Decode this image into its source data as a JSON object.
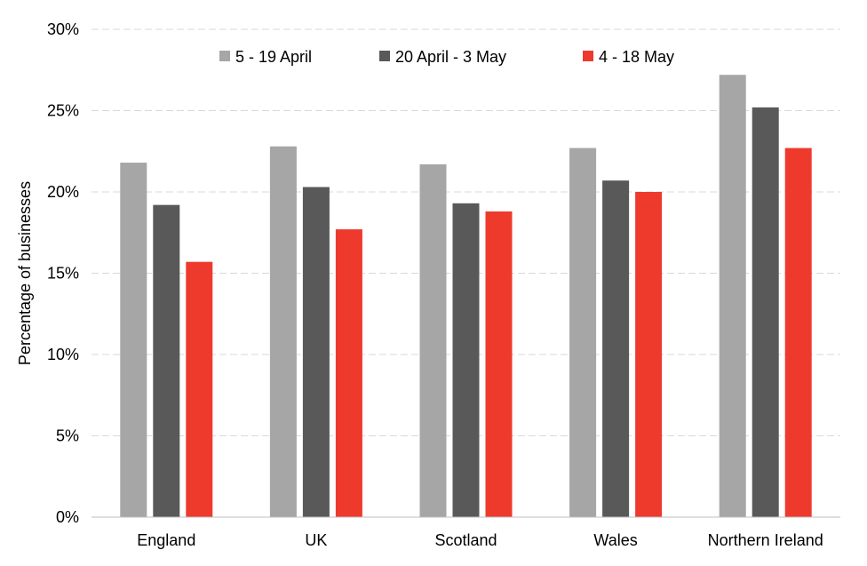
{
  "chart_data": {
    "type": "bar",
    "title": "",
    "xlabel": "",
    "ylabel": "Percentage of businesses",
    "categories": [
      "England",
      "UK",
      "Scotland",
      "Wales",
      "Northern Ireland"
    ],
    "series": [
      {
        "name": "5 - 19 April",
        "color": "#a6a6a6",
        "values": [
          21.8,
          22.8,
          21.7,
          22.7,
          27.2
        ]
      },
      {
        "name": "20 April - 3 May",
        "color": "#595959",
        "values": [
          19.2,
          20.3,
          19.3,
          20.7,
          25.2
        ]
      },
      {
        "name": "4 - 18 May",
        "color": "#ee3a2d",
        "values": [
          15.7,
          17.7,
          18.8,
          20.0,
          22.7
        ]
      }
    ],
    "ylim": [
      0,
      30
    ],
    "yticks": [
      0,
      5,
      10,
      15,
      20,
      25,
      30
    ],
    "ytick_labels": [
      "0%",
      "5%",
      "10%",
      "15%",
      "20%",
      "25%",
      "30%"
    ],
    "grid": true,
    "legend_position": "top"
  }
}
